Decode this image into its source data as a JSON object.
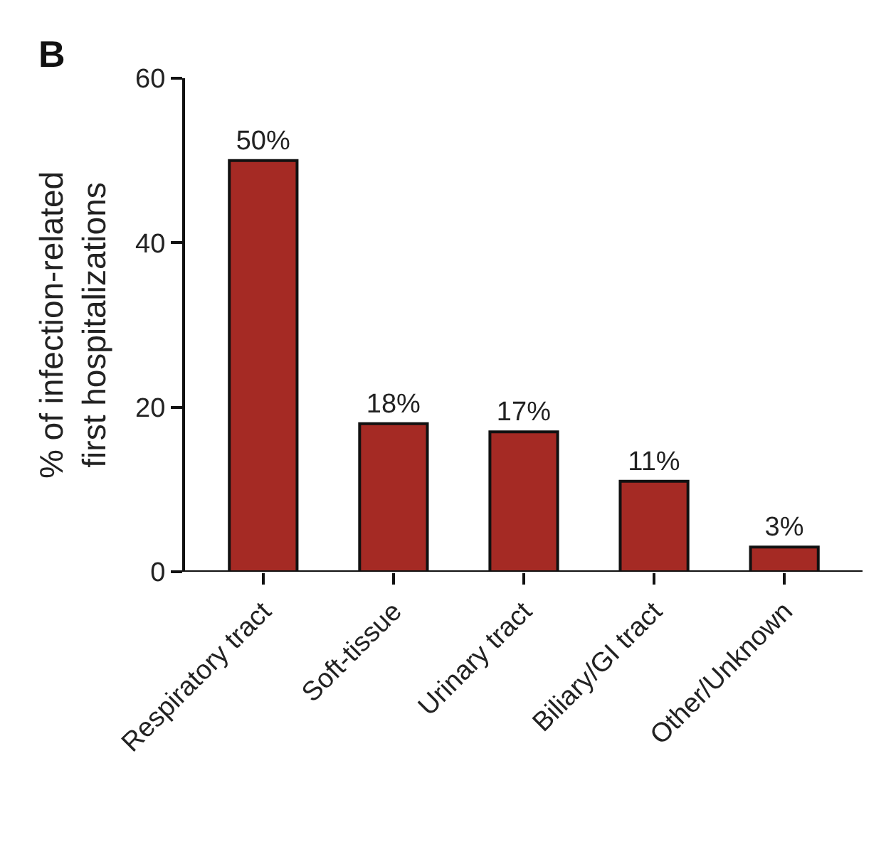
{
  "chart_data": {
    "type": "bar",
    "annotations": [
      "B"
    ],
    "ylabel": "% of infection-related\nfirst hospitalizations",
    "categories": [
      "Respiratory tract",
      "Soft-tissue",
      "Urinary tract",
      "Biliary/GI tract",
      "Other/Unknown"
    ],
    "values": [
      50,
      18,
      17,
      11,
      3
    ],
    "value_labels": [
      "50%",
      "18%",
      "17%",
      "11%",
      "3%"
    ],
    "color": "#a52a24",
    "ylim": [
      0,
      60
    ],
    "yticks": [
      0,
      20,
      40,
      60
    ]
  }
}
